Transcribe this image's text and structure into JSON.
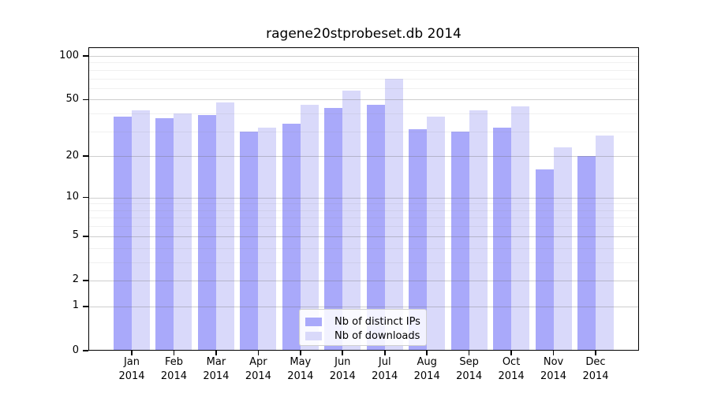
{
  "title": "ragene20stprobeset.db 2014",
  "chart_data": {
    "type": "bar",
    "title": "ragene20stprobeset.db 2014",
    "categories": [
      "Jan",
      "Feb",
      "Mar",
      "Apr",
      "May",
      "Jun",
      "Jul",
      "Aug",
      "Sep",
      "Oct",
      "Nov",
      "Dec"
    ],
    "x_year": "2014",
    "series": [
      {
        "name": "Nb of distinct IPs",
        "color": "#a9a9fa",
        "values": [
          38,
          37,
          39,
          30,
          34,
          44,
          46,
          31,
          30,
          32,
          16,
          20
        ]
      },
      {
        "name": "Nb of downloads",
        "color": "#d9d9fa",
        "values": [
          42,
          40,
          48,
          32,
          46,
          58,
          70,
          38,
          42,
          45,
          23,
          28
        ]
      }
    ],
    "y_scale": "log10(1+x)",
    "y_ticks": [
      100,
      50,
      20,
      10,
      5,
      2,
      1,
      0
    ],
    "y_minor_ticks": [
      3,
      4,
      6,
      7,
      8,
      9,
      30,
      40,
      60,
      70,
      80,
      90
    ],
    "ylim": [
      0,
      115
    ],
    "grid": "on",
    "legend_position": "bottom-center",
    "xlabel": "",
    "ylabel": ""
  },
  "colors": {
    "bar_distinct_ips": "#a9a9fa",
    "bar_downloads": "#d9d9fa",
    "grid_major": "#d4d4d4",
    "grid_minor": "#f0f0f0",
    "axis": "#000000",
    "legend_border": "#cfcfcf",
    "legend_background": "#ffffff"
  }
}
